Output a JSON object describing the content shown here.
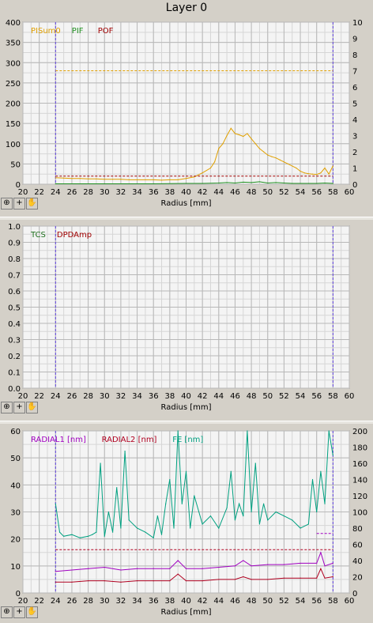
{
  "window_title": "Layer 0",
  "chart_data": [
    {
      "type": "line",
      "xlabel": "Radius [mm]",
      "xlim": [
        20,
        60
      ],
      "xticks": [
        20,
        22,
        24,
        26,
        28,
        30,
        32,
        34,
        36,
        38,
        40,
        42,
        44,
        46,
        48,
        50,
        52,
        54,
        56,
        58,
        60
      ],
      "ylim": [
        0,
        400
      ],
      "yticks": [
        0,
        50,
        100,
        150,
        200,
        250,
        300,
        350,
        400
      ],
      "y2lim": [
        0,
        10
      ],
      "y2ticks": [
        0,
        1,
        2,
        3,
        4,
        5,
        6,
        7,
        8,
        9,
        10
      ],
      "grid": true,
      "vlines": [
        24,
        58
      ],
      "legend": [
        {
          "name": "PISum0",
          "color": "#e0a000"
        },
        {
          "name": "PIF",
          "color": "#209020"
        },
        {
          "name": "POF",
          "color": "#a00000"
        }
      ],
      "series": [
        {
          "name": "PISum0",
          "color": "#e0a000",
          "x": [
            24,
            25,
            26,
            27,
            28,
            29,
            30,
            31,
            32,
            33,
            34,
            35,
            36,
            37,
            38,
            39,
            40,
            41,
            42,
            43,
            43.5,
            44,
            44.5,
            45,
            45.5,
            46,
            46.5,
            47,
            47.5,
            48,
            48.5,
            49,
            49.5,
            50,
            50.5,
            51,
            51.5,
            52,
            52.5,
            53,
            53.5,
            54,
            54.5,
            55,
            55.5,
            56,
            56.5,
            57,
            57.5,
            58
          ],
          "y": [
            16,
            15,
            14,
            14,
            13,
            13,
            12,
            12,
            12,
            11,
            11,
            11,
            11,
            10,
            11,
            11,
            14,
            18,
            28,
            40,
            55,
            88,
            100,
            120,
            138,
            125,
            122,
            118,
            125,
            112,
            100,
            88,
            80,
            72,
            68,
            65,
            60,
            55,
            50,
            45,
            40,
            32,
            28,
            26,
            25,
            24,
            28,
            40,
            25,
            45
          ]
        },
        {
          "name": "PIF",
          "color": "#209020",
          "x": [
            24,
            30,
            36,
            40,
            42,
            44,
            45,
            46,
            47,
            48,
            49,
            50,
            51,
            52,
            53,
            54,
            55,
            56,
            57,
            58
          ],
          "y": [
            1,
            1,
            1,
            2,
            2,
            3,
            4,
            3,
            5,
            4,
            6,
            3,
            4,
            3,
            2,
            2,
            2,
            2,
            3,
            2
          ]
        },
        {
          "name": "POF",
          "color": "#a00000",
          "dashed": true,
          "x": [
            24,
            58
          ],
          "y": [
            20,
            20
          ]
        },
        {
          "name": "PISum0 threshold",
          "color": "#e0a000",
          "dashed": true,
          "x": [
            24,
            58
          ],
          "y": [
            280,
            280
          ]
        }
      ]
    },
    {
      "type": "line",
      "xlabel": "Radius [mm]",
      "xlim": [
        20,
        60
      ],
      "xticks": [
        20,
        22,
        24,
        26,
        28,
        30,
        32,
        34,
        36,
        38,
        40,
        42,
        44,
        46,
        48,
        50,
        52,
        54,
        56,
        58,
        60
      ],
      "ylim": [
        0,
        1
      ],
      "yticks": [
        0.0,
        0.1,
        0.2,
        0.3,
        0.4,
        0.5,
        0.6,
        0.7,
        0.8,
        0.9,
        1.0
      ],
      "grid": true,
      "vlines": [
        24,
        58
      ],
      "legend": [
        {
          "name": "TCS",
          "color": "#207020"
        },
        {
          "name": "DPDAmp",
          "color": "#a00000"
        }
      ],
      "series": []
    },
    {
      "type": "line",
      "xlabel": "Radius [mm]",
      "xlim": [
        20,
        60
      ],
      "xticks": [
        20,
        22,
        24,
        26,
        28,
        30,
        32,
        34,
        36,
        38,
        40,
        42,
        44,
        46,
        48,
        50,
        52,
        54,
        56,
        58,
        60
      ],
      "ylim": [
        0,
        60
      ],
      "yticks": [
        0,
        10,
        20,
        30,
        40,
        50,
        60
      ],
      "y2lim": [
        0,
        200
      ],
      "y2ticks": [
        0,
        20,
        40,
        60,
        80,
        100,
        120,
        140,
        160,
        180,
        200
      ],
      "grid": true,
      "vlines": [
        24,
        58
      ],
      "legend": [
        {
          "name": "RADIAL1 [nm]",
          "color": "#a000c0"
        },
        {
          "name": "RADIAL2 [nm]",
          "color": "#b00020"
        },
        {
          "name": "FE [nm]",
          "color": "#00a080"
        }
      ],
      "series": [
        {
          "name": "RADIAL1 [nm]",
          "color": "#a000c0",
          "x": [
            24,
            26,
            28,
            30,
            32,
            34,
            36,
            38,
            39,
            40,
            42,
            44,
            46,
            47,
            48,
            50,
            52,
            54,
            56,
            56.5,
            57,
            58
          ],
          "y": [
            8,
            8.5,
            9,
            9.5,
            8.5,
            9,
            9,
            9,
            12,
            9,
            9,
            9.5,
            10,
            12,
            10,
            10.5,
            10.5,
            11,
            11,
            15,
            10,
            11
          ]
        },
        {
          "name": "RADIAL2 [nm]",
          "color": "#b00020",
          "x": [
            24,
            26,
            28,
            30,
            32,
            34,
            36,
            38,
            39,
            40,
            42,
            44,
            46,
            47,
            48,
            50,
            52,
            54,
            56,
            56.5,
            57,
            58
          ],
          "y": [
            4,
            4,
            4.5,
            4.5,
            4,
            4.5,
            4.5,
            4.5,
            7,
            4.5,
            4.5,
            5,
            5,
            6,
            5,
            5,
            5.5,
            5.5,
            5.5,
            9,
            5.5,
            6
          ]
        },
        {
          "name": "FE [nm]",
          "color": "#00a080",
          "axis": "y2",
          "x": [
            24,
            24.5,
            25,
            26,
            27,
            28,
            28.5,
            29,
            29.5,
            30,
            30.5,
            31,
            31.5,
            32,
            32.5,
            33,
            34,
            35,
            36,
            36.5,
            37,
            37.5,
            38,
            38.5,
            39,
            39.5,
            40,
            40.5,
            41,
            42,
            43,
            44,
            45,
            45.5,
            46,
            46.5,
            47,
            47.5,
            48,
            48.5,
            49,
            49.5,
            50,
            51,
            52,
            53,
            54,
            55,
            55.5,
            56,
            56.5,
            57,
            57.5,
            58
          ],
          "y": [
            110,
            75,
            70,
            72,
            68,
            70,
            72,
            75,
            160,
            70,
            100,
            75,
            130,
            80,
            175,
            90,
            80,
            75,
            68,
            95,
            72,
            110,
            140,
            80,
            200,
            110,
            150,
            80,
            120,
            85,
            95,
            80,
            105,
            150,
            90,
            110,
            95,
            200,
            100,
            160,
            85,
            110,
            90,
            100,
            95,
            90,
            80,
            85,
            140,
            100,
            150,
            110,
            200,
            170
          ]
        },
        {
          "name": "RADIAL2 threshold",
          "color": "#b00020",
          "dashed": true,
          "x": [
            24,
            58
          ],
          "y": [
            16,
            16
          ]
        },
        {
          "name": "RADIAL1 threshold",
          "color": "#a000c0",
          "dashed": true,
          "x": [
            56,
            58
          ],
          "y": [
            22,
            22
          ]
        }
      ]
    }
  ]
}
